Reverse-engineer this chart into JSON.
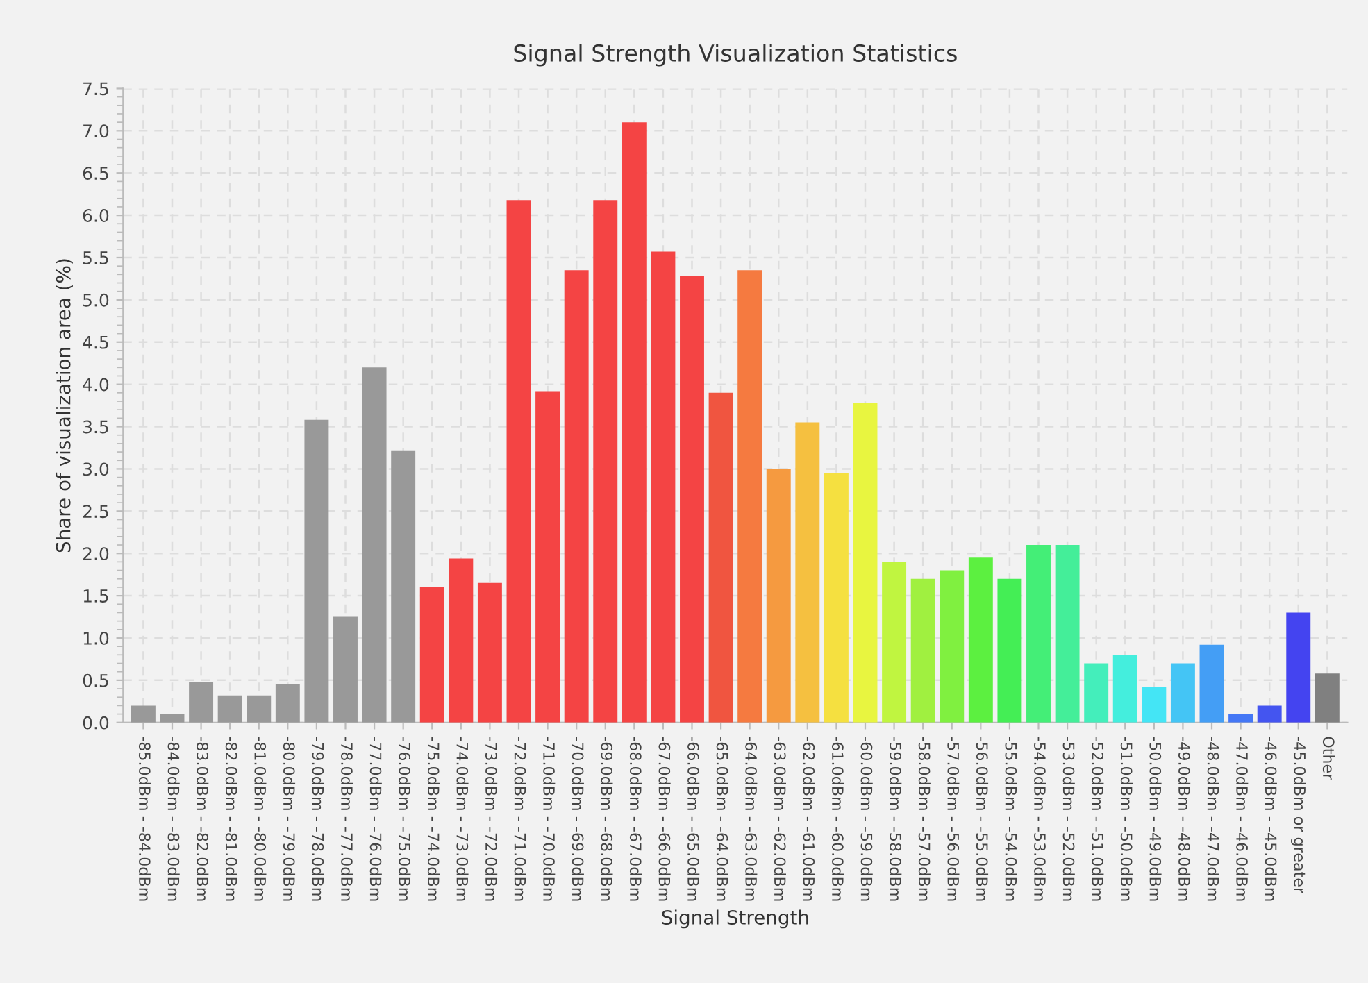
{
  "chart_data": {
    "type": "bar",
    "title": "Signal Strength Visualization Statistics",
    "xlabel": "Signal Strength",
    "ylabel": "Share of visualization area (%)",
    "categories": [
      "-85.0dBm - -84.0dBm",
      "-84.0dBm - -83.0dBm",
      "-83.0dBm - -82.0dBm",
      "-82.0dBm - -81.0dBm",
      "-81.0dBm - -80.0dBm",
      "-80.0dBm - -79.0dBm",
      "-79.0dBm - -78.0dBm",
      "-78.0dBm - -77.0dBm",
      "-77.0dBm - -76.0dBm",
      "-76.0dBm - -75.0dBm",
      "-75.0dBm - -74.0dBm",
      "-74.0dBm - -73.0dBm",
      "-73.0dBm - -72.0dBm",
      "-72.0dBm - -71.0dBm",
      "-71.0dBm - -70.0dBm",
      "-70.0dBm - -69.0dBm",
      "-69.0dBm - -68.0dBm",
      "-68.0dBm - -67.0dBm",
      "-67.0dBm - -66.0dBm",
      "-66.0dBm - -65.0dBm",
      "-65.0dBm - -64.0dBm",
      "-64.0dBm - -63.0dBm",
      "-63.0dBm - -62.0dBm",
      "-62.0dBm - -61.0dBm",
      "-61.0dBm - -60.0dBm",
      "-60.0dBm - -59.0dBm",
      "-59.0dBm - -58.0dBm",
      "-58.0dBm - -57.0dBm",
      "-57.0dBm - -56.0dBm",
      "-56.0dBm - -55.0dBm",
      "-55.0dBm - -54.0dBm",
      "-54.0dBm - -53.0dBm",
      "-53.0dBm - -52.0dBm",
      "-52.0dBm - -51.0dBm",
      "-51.0dBm - -50.0dBm",
      "-50.0dBm - -49.0dBm",
      "-49.0dBm - -48.0dBm",
      "-48.0dBm - -47.0dBm",
      "-47.0dBm - -46.0dBm",
      "-46.0dBm - -45.0dBm",
      "-45.0dBm or greater",
      "Other"
    ],
    "values": [
      0.2,
      0.1,
      0.48,
      0.32,
      0.32,
      0.45,
      3.58,
      1.25,
      4.2,
      3.22,
      1.6,
      1.94,
      1.65,
      6.18,
      3.92,
      5.35,
      6.18,
      7.1,
      5.57,
      5.28,
      3.9,
      5.35,
      3.0,
      3.55,
      2.95,
      3.78,
      1.9,
      1.7,
      1.8,
      1.95,
      1.7,
      2.1,
      2.1,
      0.7,
      0.8,
      0.42,
      0.7,
      0.92,
      0.1,
      0.2,
      1.3,
      0.58
    ],
    "colors": [
      "#999999",
      "#999999",
      "#999999",
      "#999999",
      "#999999",
      "#999999",
      "#999999",
      "#999999",
      "#999999",
      "#999999",
      "#f44444",
      "#f44444",
      "#f44444",
      "#f44444",
      "#f44444",
      "#f44444",
      "#f44444",
      "#f44444",
      "#f44444",
      "#f44444",
      "#f05540",
      "#f57a40",
      "#f59a40",
      "#f5c040",
      "#f5e040",
      "#e8f540",
      "#c0f540",
      "#a0f040",
      "#80f040",
      "#5cf040",
      "#44ee55",
      "#44ee77",
      "#44ee99",
      "#44eebb",
      "#44eedd",
      "#44e5f5",
      "#44c5f5",
      "#449ef5",
      "#4477f5",
      "#4455f0",
      "#4444f0",
      "#808080"
    ],
    "ylim": [
      0,
      7.5
    ],
    "yticks": [
      {
        "value": 0,
        "label": "0.0"
      },
      {
        "value": 0.5,
        "label": "0.5"
      },
      {
        "value": 1,
        "label": "1.0"
      },
      {
        "value": 1.5,
        "label": "1.5"
      },
      {
        "value": 2,
        "label": "2.0"
      },
      {
        "value": 2.5,
        "label": "2.5"
      },
      {
        "value": 3,
        "label": "3.0"
      },
      {
        "value": 3.5,
        "label": "3.5"
      },
      {
        "value": 4,
        "label": "4.0"
      },
      {
        "value": 4.5,
        "label": "4.5"
      },
      {
        "value": 5,
        "label": "5.0"
      },
      {
        "value": 5.5,
        "label": "5.5"
      },
      {
        "value": 6,
        "label": "6.0"
      },
      {
        "value": 6.5,
        "label": "6.5"
      },
      {
        "value": 7,
        "label": "7.0"
      },
      {
        "value": 7.5,
        "label": "7.5"
      }
    ],
    "grid": true
  }
}
